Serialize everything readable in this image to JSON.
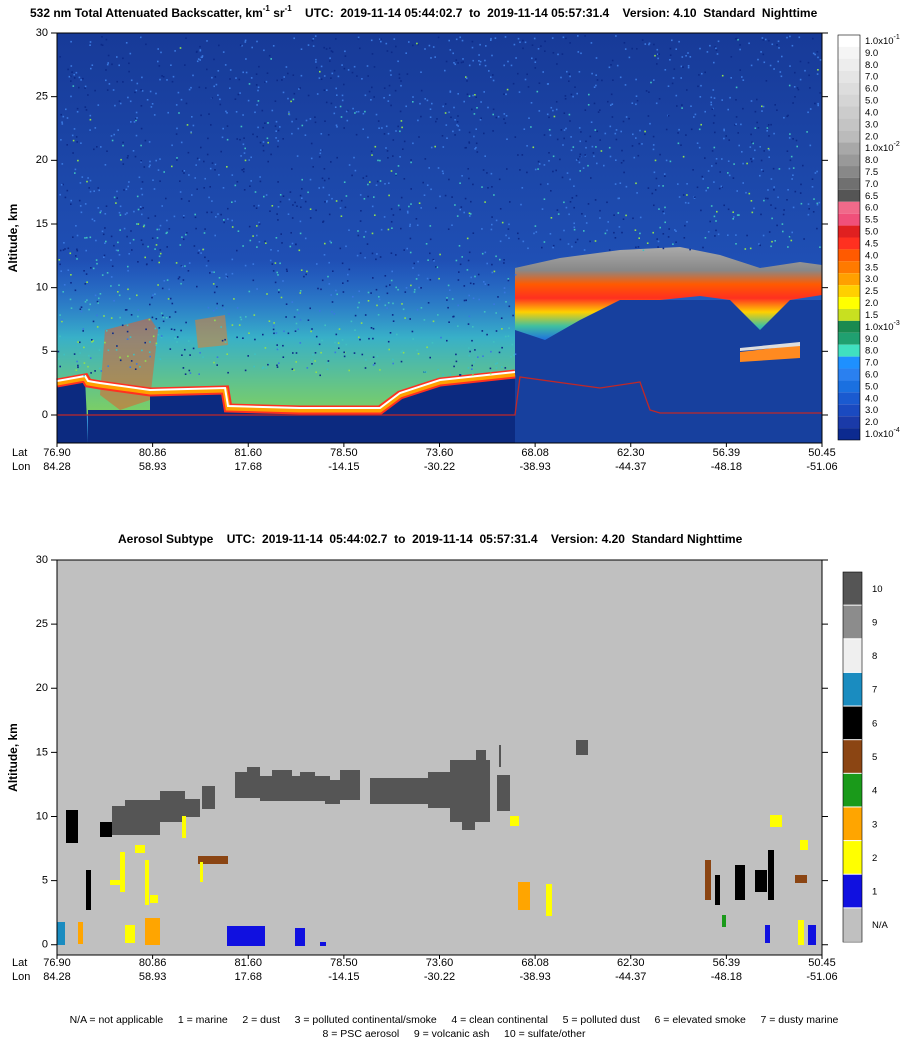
{
  "chart_data": [
    {
      "type": "curtain",
      "title": {
        "text": "532 nm Total Attenuated Backscatter, km",
        "sup1": "-1",
        "mid": " sr",
        "sup2": "-1"
      },
      "subtitle": "UTC:  2019-11-14 05:44:02.7  to  2019-11-14 05:57:31.4    Version: 4.10  Standard  Nighttime",
      "ylabel": "Altitude, km",
      "ylim": [
        -2.2,
        30
      ],
      "yticks": [
        0,
        5,
        10,
        15,
        20,
        25,
        30
      ],
      "x_rows": [
        {
          "name": "Lat",
          "labels": [
            "76.90",
            "80.86",
            "81.60",
            "78.50",
            "73.60",
            "68.08",
            "62.30",
            "56.39",
            "50.45"
          ]
        },
        {
          "name": "Lon",
          "labels": [
            "84.28",
            "58.93",
            "17.68",
            "-14.15",
            "-30.22",
            "-38.93",
            "-44.37",
            "-48.18",
            "-51.06"
          ]
        }
      ],
      "colorbar": [
        {
          "label": "1.0x10",
          "exp": "-1",
          "color": "#ffffff"
        },
        {
          "label": "9.0",
          "color": "#f5f5f5"
        },
        {
          "label": "8.0",
          "color": "#ededed"
        },
        {
          "label": "7.0",
          "color": "#e5e5e5"
        },
        {
          "label": "6.0",
          "color": "#dddddd"
        },
        {
          "label": "5.0",
          "color": "#d5d5d5"
        },
        {
          "label": "4.0",
          "color": "#cccccc"
        },
        {
          "label": "3.0",
          "color": "#c4c4c4"
        },
        {
          "label": "2.0",
          "color": "#bbbbbb"
        },
        {
          "label": "1.0x10",
          "exp": "-2",
          "color": "#a8a8a8"
        },
        {
          "label": "8.0",
          "color": "#999999"
        },
        {
          "label": "7.5",
          "color": "#888888"
        },
        {
          "label": "7.0",
          "color": "#707070"
        },
        {
          "label": "6.5",
          "color": "#555555"
        },
        {
          "label": "6.0",
          "color": "#f06a8a"
        },
        {
          "label": "5.5",
          "color": "#f0507a"
        },
        {
          "label": "5.0",
          "color": "#e02020"
        },
        {
          "label": "4.5",
          "color": "#ff3020"
        },
        {
          "label": "4.0",
          "color": "#ff5a00"
        },
        {
          "label": "3.5",
          "color": "#ff7a00"
        },
        {
          "label": "3.0",
          "color": "#ffa000"
        },
        {
          "label": "2.5",
          "color": "#ffd000"
        },
        {
          "label": "2.0",
          "color": "#ffff00"
        },
        {
          "label": "1.5",
          "color": "#c8e020"
        },
        {
          "label": "1.0x10",
          "exp": "-3",
          "color": "#1a8a50"
        },
        {
          "label": "9.0",
          "color": "#20a070"
        },
        {
          "label": "8.0",
          "color": "#40e0c0"
        },
        {
          "label": "7.0",
          "color": "#1e90ff"
        },
        {
          "label": "6.0",
          "color": "#2a80f0"
        },
        {
          "label": "5.0",
          "color": "#1a70e0"
        },
        {
          "label": "4.0",
          "color": "#1a5ad0"
        },
        {
          "label": "3.0",
          "color": "#1a4ac0"
        },
        {
          "label": "2.0",
          "color": "#1a3aa8"
        },
        {
          "label": "1.0x10",
          "exp": "-4",
          "color": "#0c2a90"
        }
      ]
    },
    {
      "type": "curtain",
      "title": {
        "text": "Aerosol Subtype"
      },
      "subtitle": "UTC:  2019-11-14  05:44:02.7  to  2019-11-14  05:57:31.4    Version: 4.20  Standard Nighttime",
      "ylabel": "Altitude, km",
      "ylim": [
        -0.8,
        30
      ],
      "yticks": [
        0,
        5,
        10,
        15,
        20,
        25,
        30
      ],
      "x_rows": [
        {
          "name": "Lat",
          "labels": [
            "76.90",
            "80.86",
            "81.60",
            "78.50",
            "73.60",
            "68.08",
            "62.30",
            "56.39",
            "50.45"
          ]
        },
        {
          "name": "Lon",
          "labels": [
            "84.28",
            "58.93",
            "17.68",
            "-14.15",
            "-30.22",
            "-38.93",
            "-44.37",
            "-48.18",
            "-51.06"
          ]
        }
      ],
      "colorbar": [
        {
          "label": "10",
          "color": "#555555"
        },
        {
          "label": "9",
          "color": "#8c8c8c"
        },
        {
          "label": "8",
          "color": "#efefef"
        },
        {
          "label": "7",
          "color": "#1a8cc0"
        },
        {
          "label": "6",
          "color": "#000000"
        },
        {
          "label": "5",
          "color": "#8b4513"
        },
        {
          "label": "4",
          "color": "#1a9a1a"
        },
        {
          "label": "3",
          "color": "#ffa500"
        },
        {
          "label": "2",
          "color": "#ffff00"
        },
        {
          "label": "1",
          "color": "#1010e0"
        },
        {
          "label": "N/A",
          "color": "#c0c0c0"
        }
      ],
      "notes": [
        [
          "N/A = not applicable",
          "1 = marine",
          "2 = dust",
          "3 = polluted continental/smoke",
          "4 = clean continental",
          "5 = polluted dust",
          "6 = elevated smoke",
          "7 = dusty marine"
        ],
        [
          "8 = PSC aerosol",
          "9 = volcanic ash",
          "10 = sulfate/other"
        ]
      ]
    }
  ]
}
